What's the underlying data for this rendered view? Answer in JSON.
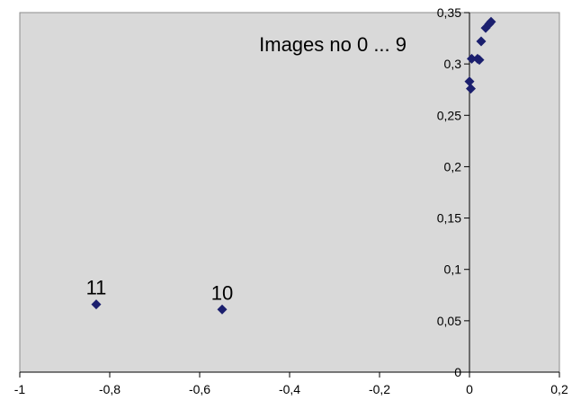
{
  "chart_data": {
    "type": "scatter",
    "title": "",
    "xlabel": "",
    "ylabel": "",
    "xlim": [
      -1,
      0.2
    ],
    "ylim": [
      0,
      0.35
    ],
    "x_ticks": [
      "-1",
      "-0,8",
      "-0,6",
      "-0,4",
      "-0,2",
      "0",
      "0,2"
    ],
    "x_tick_values": [
      -1,
      -0.8,
      -0.6,
      -0.4,
      -0.2,
      0,
      0.2
    ],
    "y_ticks": [
      "0",
      "0,05",
      "0,1",
      "0,15",
      "0,2",
      "0,25",
      "0,3",
      "0,35"
    ],
    "y_tick_values": [
      0,
      0.05,
      0.1,
      0.15,
      0.2,
      0.25,
      0.3,
      0.35
    ],
    "grid": false,
    "legend": "none",
    "plot_background": "#d9d9d9",
    "marker_color": "#1b1f6e",
    "marker_shape": "diamond",
    "series": [
      {
        "points": [
          {
            "x": 0.0,
            "y": 0.283
          },
          {
            "x": 0.003,
            "y": 0.276
          },
          {
            "x": 0.005,
            "y": 0.305
          },
          {
            "x": 0.018,
            "y": 0.305
          },
          {
            "x": 0.022,
            "y": 0.304
          },
          {
            "x": 0.026,
            "y": 0.322
          },
          {
            "x": 0.036,
            "y": 0.335
          },
          {
            "x": 0.044,
            "y": 0.339
          },
          {
            "x": 0.048,
            "y": 0.341
          },
          {
            "x": -0.55,
            "y": 0.061,
            "label": "10"
          },
          {
            "x": -0.83,
            "y": 0.066,
            "label": "11"
          }
        ]
      }
    ],
    "annotations": [
      {
        "text": "Images no 0 ... 9"
      }
    ]
  }
}
